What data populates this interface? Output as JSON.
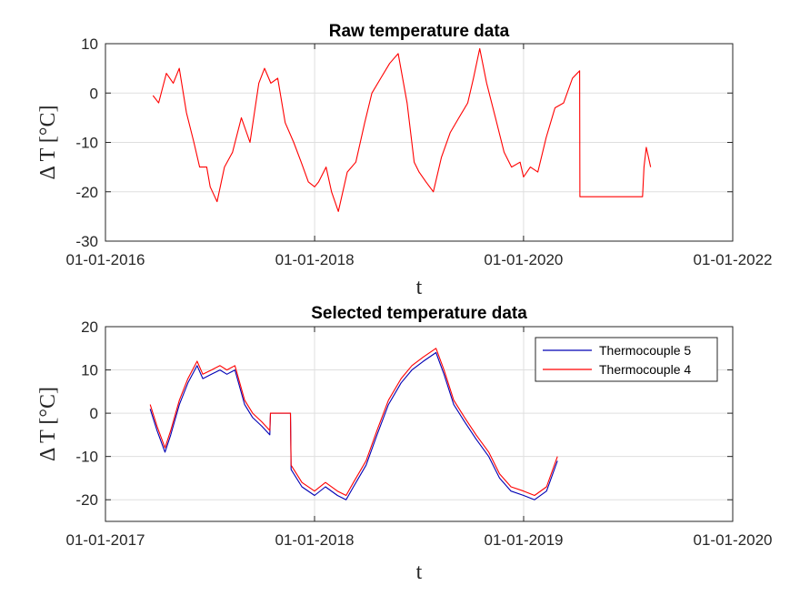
{
  "chart_data": [
    {
      "type": "line",
      "title": "Raw temperature data",
      "xlabel": "t",
      "ylabel": "Δ T [°C]",
      "xlim": [
        "2016-01-01",
        "2022-01-01"
      ],
      "ylim": [
        -30,
        10
      ],
      "xticks": [
        "01-01-2016",
        "01-01-2018",
        "01-01-2020",
        "01-01-2022"
      ],
      "yticks": [
        10,
        0,
        -10,
        -20,
        -30
      ],
      "grid": true,
      "legend": false,
      "series": [
        {
          "color": "#ff0000",
          "x": [
            "2016-06-15",
            "2016-07-05",
            "2016-08-01",
            "2016-08-25",
            "2016-09-15",
            "2016-10-10",
            "2016-11-05",
            "2016-11-25",
            "2016-12-20",
            "2017-01-01",
            "2017-01-25",
            "2017-02-20",
            "2017-03-20",
            "2017-04-20",
            "2017-05-20",
            "2017-06-20",
            "2017-07-10",
            "2017-08-01",
            "2017-08-25",
            "2017-09-20",
            "2017-10-20",
            "2017-11-15",
            "2017-12-10",
            "2018-01-01",
            "2018-01-15",
            "2018-02-10",
            "2018-03-01",
            "2018-03-25",
            "2018-04-25",
            "2018-05-25",
            "2018-06-25",
            "2018-07-20",
            "2018-08-20",
            "2018-09-20",
            "2018-10-20",
            "2018-11-20",
            "2018-12-15",
            "2019-01-01",
            "2019-01-25",
            "2019-02-20",
            "2019-03-20",
            "2019-04-20",
            "2019-05-20",
            "2019-06-20",
            "2019-07-10",
            "2019-08-01",
            "2019-08-25",
            "2019-09-25",
            "2019-10-25",
            "2019-11-20",
            "2019-12-20",
            "2020-01-01",
            "2020-01-25",
            "2020-02-20",
            "2020-03-20",
            "2020-04-20",
            "2020-05-20",
            "2020-06-20",
            "2020-07-15",
            "2020-07-16",
            "2021-02-20",
            "2021-02-25",
            "2021-03-05",
            "2021-03-20"
          ],
          "y": [
            -0.5,
            -2,
            4,
            2,
            5,
            -4,
            -10,
            -15,
            -15,
            -19,
            -22,
            -15,
            -12,
            -5,
            -10,
            2,
            5,
            2,
            3,
            -6,
            -10,
            -14,
            -18,
            -19,
            -18,
            -15,
            -20,
            -24,
            -16,
            -14,
            -6,
            0,
            3,
            6,
            8,
            -2,
            -14,
            -16,
            -18,
            -20,
            -13,
            -8,
            -5,
            -2,
            3,
            9,
            2,
            -5,
            -12,
            -15,
            -14,
            -17,
            -15,
            -16,
            -9,
            -3,
            -2,
            3,
            4.5,
            -21,
            -21,
            -15,
            -11,
            -15
          ]
        }
      ]
    },
    {
      "type": "line",
      "title": "Selected temperature data",
      "xlabel": "t",
      "ylabel": "Δ T [°C]",
      "xlim": [
        "2017-01-01",
        "2020-01-01"
      ],
      "ylim": [
        -25,
        20
      ],
      "xticks": [
        "01-01-2017",
        "01-01-2018",
        "01-01-2019",
        "01-01-2020"
      ],
      "yticks": [
        20,
        10,
        0,
        -10,
        -20
      ],
      "grid": true,
      "legend": "top-right",
      "series": [
        {
          "name": "Thermocouple 5",
          "color": "#0000b4",
          "x": [
            "2017-03-20",
            "2017-04-01",
            "2017-04-15",
            "2017-04-25",
            "2017-05-10",
            "2017-05-25",
            "2017-06-10",
            "2017-06-20",
            "2017-07-05",
            "2017-07-20",
            "2017-08-01",
            "2017-08-15",
            "2017-09-01",
            "2017-09-15",
            "2017-10-01",
            "2017-10-15",
            "2017-10-16",
            "2017-11-20",
            "2017-11-21",
            "2017-12-10",
            "2018-01-01",
            "2018-01-20",
            "2018-02-10",
            "2018-02-25",
            "2018-03-10",
            "2018-04-01",
            "2018-04-20",
            "2018-05-10",
            "2018-06-01",
            "2018-06-20",
            "2018-07-10",
            "2018-08-01",
            "2018-08-15",
            "2018-09-01",
            "2018-09-20",
            "2018-10-10",
            "2018-11-01",
            "2018-11-20",
            "2018-12-10",
            "2019-01-01",
            "2019-01-20",
            "2019-02-10",
            "2019-03-01"
          ],
          "y": [
            1,
            -4,
            -9,
            -5,
            2,
            7,
            11,
            8,
            9,
            10,
            9,
            10,
            2,
            -1,
            -3,
            -5,
            0,
            0,
            -13,
            -17,
            -19,
            -17,
            -19,
            -20,
            -17,
            -12,
            -5,
            2,
            7,
            10,
            12,
            14,
            9,
            2,
            -2,
            -6,
            -10,
            -15,
            -18,
            -19,
            -20,
            -18,
            -11
          ]
        },
        {
          "name": "Thermocouple 4",
          "color": "#ff0000",
          "x": [
            "2017-03-20",
            "2017-04-01",
            "2017-04-15",
            "2017-04-25",
            "2017-05-10",
            "2017-05-25",
            "2017-06-10",
            "2017-06-20",
            "2017-07-05",
            "2017-07-20",
            "2017-08-01",
            "2017-08-15",
            "2017-09-01",
            "2017-09-15",
            "2017-10-01",
            "2017-10-15",
            "2017-10-16",
            "2017-11-20",
            "2017-11-21",
            "2017-12-10",
            "2018-01-01",
            "2018-01-20",
            "2018-02-10",
            "2018-02-25",
            "2018-03-10",
            "2018-04-01",
            "2018-04-20",
            "2018-05-10",
            "2018-06-01",
            "2018-06-20",
            "2018-07-10",
            "2018-08-01",
            "2018-08-15",
            "2018-09-01",
            "2018-09-20",
            "2018-10-10",
            "2018-11-01",
            "2018-11-20",
            "2018-12-10",
            "2019-01-01",
            "2019-01-20",
            "2019-02-10",
            "2019-03-01"
          ],
          "y": [
            2,
            -3,
            -8,
            -4,
            3,
            8,
            12,
            9,
            10,
            11,
            10,
            11,
            3,
            0,
            -2,
            -4,
            0,
            0,
            -12,
            -16,
            -18,
            -16,
            -18,
            -19,
            -16,
            -11,
            -4,
            3,
            8,
            11,
            13,
            15,
            10,
            3,
            -1,
            -5,
            -9,
            -14,
            -17,
            -18,
            -19,
            -17,
            -10
          ]
        }
      ]
    }
  ]
}
